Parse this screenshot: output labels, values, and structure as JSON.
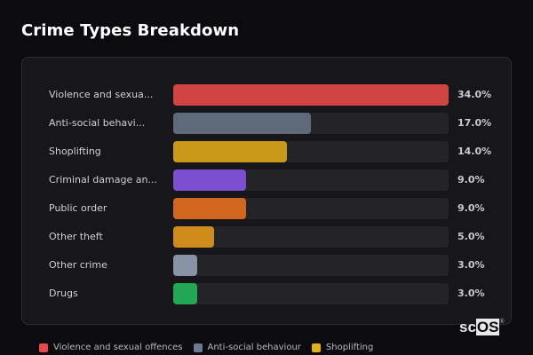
{
  "header": {
    "title": "Crime Types Breakdown"
  },
  "chart_data": {
    "type": "bar",
    "orientation": "horizontal",
    "title": "Crime Types Breakdown",
    "categories": [
      "Violence and sexual offences",
      "Anti-social behaviour",
      "Shoplifting",
      "Criminal damage and arson",
      "Public order",
      "Other theft",
      "Other crime",
      "Drugs"
    ],
    "display_labels": [
      "Violence and sexua...",
      "Anti-social behavi...",
      "Shoplifting",
      "Criminal damage an...",
      "Public order",
      "Other theft",
      "Other crime",
      "Drugs"
    ],
    "values": [
      34.0,
      17.0,
      14.0,
      9.0,
      9.0,
      5.0,
      3.0,
      3.0
    ],
    "value_labels": [
      "34.0%",
      "17.0%",
      "14.0%",
      "9.0%",
      "9.0%",
      "5.0%",
      "3.0%",
      "3.0%"
    ],
    "colors": [
      "#d04444",
      "#5e6a7a",
      "#c9991a",
      "#7b4fd0",
      "#d2661e",
      "#d08c1a",
      "#8893a5",
      "#22a854"
    ],
    "xlim": [
      0,
      34
    ],
    "unit": "%",
    "legend": {
      "position": "bottom",
      "entries": [
        {
          "label": "Violence and sexual offences",
          "color": "#e5484d"
        },
        {
          "label": "Anti-social behaviour",
          "color": "#6b7a8f"
        },
        {
          "label": "Shoplifting",
          "color": "#e0b21c"
        }
      ]
    }
  },
  "watermark": {
    "text_prefix": "sc",
    "text_boxed": "OS",
    "mark": "®"
  }
}
